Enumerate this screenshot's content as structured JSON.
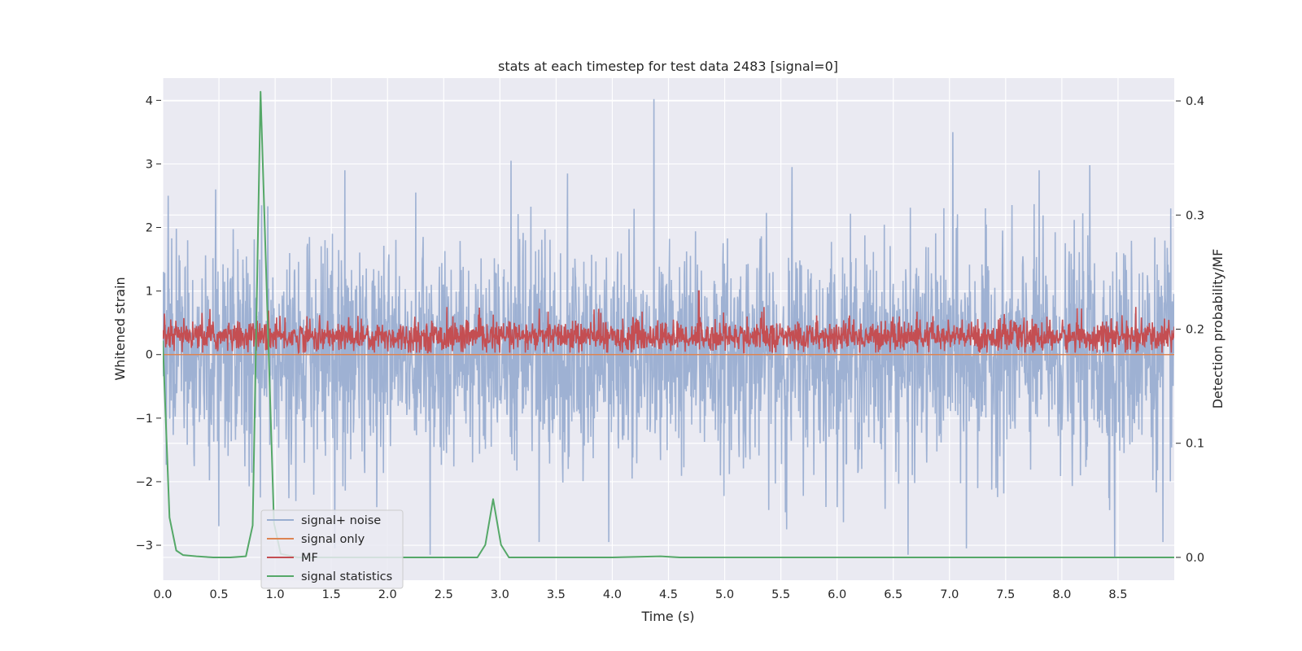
{
  "chart_data": {
    "type": "line",
    "title": "stats at each timestep for test data 2483 [signal=0]",
    "xlabel": "Time (s)",
    "ylabel_left": "Whitened strain",
    "ylabel_right": "Detection probability/MF",
    "xlim": [
      0.0,
      9.0
    ],
    "ylim_left": [
      -3.55,
      4.35
    ],
    "ylim_right": [
      -0.02,
      0.42
    ],
    "xticks": [
      "0.0",
      "0.5",
      "1.0",
      "1.5",
      "2.0",
      "2.5",
      "3.0",
      "3.5",
      "4.0",
      "4.5",
      "5.0",
      "5.5",
      "6.0",
      "6.5",
      "7.0",
      "7.5",
      "8.0",
      "8.5"
    ],
    "xtick_values": [
      0.0,
      0.5,
      1.0,
      1.5,
      2.0,
      2.5,
      3.0,
      3.5,
      4.0,
      4.5,
      5.0,
      5.5,
      6.0,
      6.5,
      7.0,
      7.5,
      8.0,
      8.5
    ],
    "yticks_left": [
      "−3",
      "−2",
      "−1",
      "0",
      "1",
      "2",
      "3",
      "4"
    ],
    "ytick_values_left": [
      -3,
      -2,
      -1,
      0,
      1,
      2,
      3,
      4
    ],
    "yticks_right": [
      "0.0",
      "0.1",
      "0.2",
      "0.3",
      "0.4"
    ],
    "ytick_values_right": [
      0.0,
      0.1,
      0.2,
      0.3,
      0.4
    ],
    "grid": true,
    "legend_position": "lower-left",
    "colors": {
      "background": "#eaeaf2",
      "grid": "#ffffff",
      "noise": "#9aaed1",
      "signal_only": "#dd8452",
      "mf": "#c44e52",
      "stats": "#55a868"
    },
    "series": [
      {
        "name": "signal+ noise",
        "axis": "left",
        "color": "#9aaed1",
        "description_values": {
          "mean": 0.0,
          "envelope_upper_typical": 2.0,
          "envelope_lower_typical": -2.0,
          "peaks": [
            {
              "x": 0.05,
              "y": 2.5
            },
            {
              "x": 0.47,
              "y": 2.6
            },
            {
              "x": 0.88,
              "y": 2.35
            },
            {
              "x": 1.62,
              "y": 2.9
            },
            {
              "x": 2.25,
              "y": 2.55
            },
            {
              "x": 3.1,
              "y": 3.05
            },
            {
              "x": 3.6,
              "y": 2.85
            },
            {
              "x": 4.37,
              "y": 4.02
            },
            {
              "x": 5.6,
              "y": 2.95
            },
            {
              "x": 7.03,
              "y": 3.5
            },
            {
              "x": 7.8,
              "y": 2.9
            },
            {
              "x": 8.25,
              "y": 2.98
            },
            {
              "x": 8.97,
              "y": 2.3
            },
            {
              "x": 2.38,
              "y": -3.15
            },
            {
              "x": 1.53,
              "y": -3.05
            },
            {
              "x": 6.63,
              "y": -3.15
            },
            {
              "x": 7.15,
              "y": -3.05
            },
            {
              "x": 8.47,
              "y": -3.2
            },
            {
              "x": 8.9,
              "y": -2.95
            },
            {
              "x": 3.35,
              "y": -2.95
            },
            {
              "x": 3.97,
              "y": -2.95
            },
            {
              "x": 5.55,
              "y": -2.75
            },
            {
              "x": 0.5,
              "y": -2.7
            }
          ]
        }
      },
      {
        "name": "signal only",
        "axis": "left",
        "color": "#dd8452",
        "x": [
          0.0,
          9.0
        ],
        "y": [
          0.0,
          0.0
        ]
      },
      {
        "name": "MF",
        "axis": "left",
        "color": "#c44e52",
        "description_values": {
          "baseline": 0.0,
          "mean": 0.28,
          "typical_max": 0.6,
          "max": 1.0
        }
      },
      {
        "name": "signal statistics",
        "axis": "right",
        "color": "#55a868",
        "x": [
          0.0,
          0.06,
          0.12,
          0.18,
          0.3,
          0.45,
          0.6,
          0.74,
          0.8,
          0.87,
          0.93,
          0.99,
          1.05,
          1.2,
          2.0,
          2.6,
          2.8,
          2.87,
          2.94,
          3.01,
          3.08,
          3.2,
          4.0,
          4.43,
          4.6,
          5.0,
          6.0,
          7.0,
          8.0,
          9.0
        ],
        "y": [
          0.19,
          0.035,
          0.006,
          0.002,
          0.001,
          0.0,
          0.0,
          0.001,
          0.028,
          0.408,
          0.22,
          0.03,
          0.003,
          0.0,
          0.0,
          0.0,
          0.0,
          0.011,
          0.051,
          0.011,
          0.0,
          0.0,
          0.0,
          0.001,
          0.0,
          0.0,
          0.0,
          0.0,
          0.0,
          0.0
        ]
      }
    ]
  }
}
